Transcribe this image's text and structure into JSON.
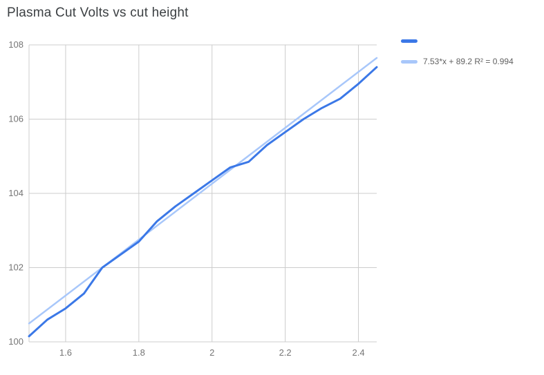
{
  "chart_data": {
    "type": "line",
    "title": "Plasma Cut Volts vs cut height",
    "x": [
      1.5,
      1.55,
      1.6,
      1.65,
      1.7,
      1.75,
      1.8,
      1.85,
      1.9,
      1.95,
      2.0,
      2.05,
      2.1,
      2.15,
      2.2,
      2.25,
      2.3,
      2.35,
      2.4,
      2.45
    ],
    "series": [
      {
        "color": "#3b78e7",
        "values": [
          100.15,
          100.6,
          100.9,
          101.3,
          102.0,
          102.35,
          102.7,
          103.25,
          103.65,
          104.0,
          104.35,
          104.7,
          104.85,
          105.3,
          105.65,
          106.0,
          106.3,
          106.55,
          106.95,
          107.4
        ]
      }
    ],
    "trendline": {
      "label": "7.53*x + 89.2 R² = 0.994",
      "slope": 7.53,
      "intercept": 89.2,
      "color": "#a8c7fa"
    },
    "xlim": [
      1.5,
      2.45
    ],
    "ylim": [
      100,
      108
    ],
    "x_ticks": [
      "1.6",
      "1.8",
      "2",
      "2.2",
      "2.4"
    ],
    "y_ticks": [
      "100",
      "102",
      "104",
      "106",
      "108"
    ],
    "grid": true,
    "legend_position": "right-top",
    "colors": {
      "grid": "#cccccc",
      "tick_label": "#757575",
      "title": "#3c4043"
    }
  }
}
